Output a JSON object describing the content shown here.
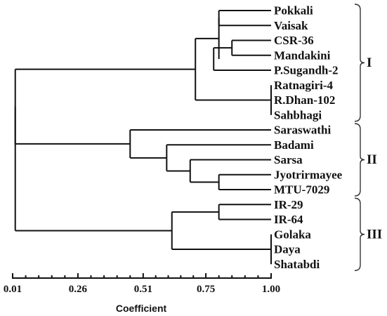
{
  "leaves": [
    "Pokkali",
    "Vaisak",
    "CSR-36",
    "Mandakini",
    "P.Sugandh-2",
    "Ratnagiri-4",
    "R.Dhan-102",
    "Sahbhagi",
    "Saraswathi",
    "Badami",
    "Sarsa",
    "Jyotrirmayee",
    "MTU-7029",
    "IR-29",
    "IR-64",
    "Golaka",
    "Daya",
    "Shatabdi"
  ],
  "clusters": [
    {
      "label": "I",
      "first": 0,
      "last": 7
    },
    {
      "label": "II",
      "first": 8,
      "last": 12
    },
    {
      "label": "III",
      "first": 13,
      "last": 17
    }
  ],
  "axis": {
    "title": "Coefficient",
    "min": 0.01,
    "max": 1.0,
    "ticks": [
      {
        "value": 0.01,
        "label": "0.01"
      },
      {
        "value": 0.26,
        "label": "0.26"
      },
      {
        "value": 0.51,
        "label": "0.51"
      },
      {
        "value": 0.75,
        "label": "0.75"
      },
      {
        "value": 1.0,
        "label": "1.00"
      }
    ],
    "minor_per_interval": 4
  },
  "tree": {
    "h": 0.02,
    "c": [
      {
        "h": 0.02,
        "c": [
          {
            "h": 0.71,
            "c": [
              {
                "h": 0.8,
                "c": [
                  {
                    "h": 0.8,
                    "c": [
                      {
                        "l": 0
                      },
                      {
                        "l": 1
                      }
                    ]
                  },
                  {
                    "h": 0.78,
                    "c": [
                      {
                        "h": 0.85,
                        "c": [
                          {
                            "l": 2
                          },
                          {
                            "l": 3
                          }
                        ]
                      },
                      {
                        "l": 4
                      }
                    ]
                  }
                ]
              },
              {
                "h": 1.0,
                "c": [
                  {
                    "l": 5
                  },
                  {
                    "l": 6
                  },
                  {
                    "l": 7
                  }
                ]
              }
            ]
          },
          {
            "h": 0.46,
            "c": [
              {
                "l": 8
              },
              {
                "h": 0.6,
                "c": [
                  {
                    "l": 9
                  },
                  {
                    "h": 0.69,
                    "c": [
                      {
                        "l": 10
                      },
                      {
                        "h": 0.8,
                        "c": [
                          {
                            "l": 11
                          },
                          {
                            "l": 12
                          }
                        ]
                      }
                    ]
                  }
                ]
              }
            ]
          }
        ]
      },
      {
        "h": 0.62,
        "c": [
          {
            "h": 0.8,
            "c": [
              {
                "l": 13
              },
              {
                "l": 14
              }
            ]
          },
          {
            "h": 1.0,
            "c": [
              {
                "l": 15
              },
              {
                "l": 16
              },
              {
                "l": 17
              }
            ]
          }
        ]
      }
    ]
  }
}
